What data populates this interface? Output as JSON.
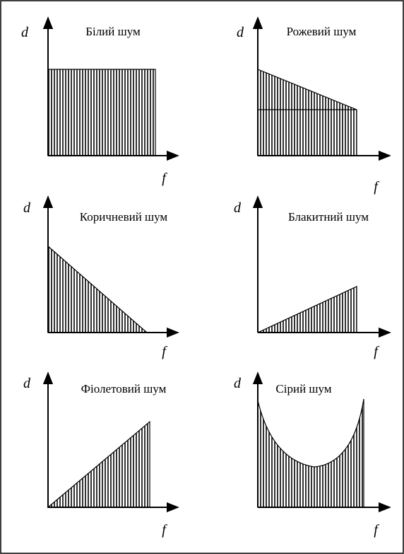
{
  "panels": [
    {
      "title": "Білий шум",
      "y_label": "d",
      "x_label": "f"
    },
    {
      "title": "Рожевий шум",
      "y_label": "d",
      "x_label": "f"
    },
    {
      "title": "Коричневий шум",
      "y_label": "d",
      "x_label": "f"
    },
    {
      "title": "Блакитний шум",
      "y_label": "d",
      "x_label": "f"
    },
    {
      "title": "Фіолетовий шум",
      "y_label": "d",
      "x_label": "f"
    },
    {
      "title": "Сірий шум",
      "y_label": "d",
      "x_label": "f"
    }
  ]
}
